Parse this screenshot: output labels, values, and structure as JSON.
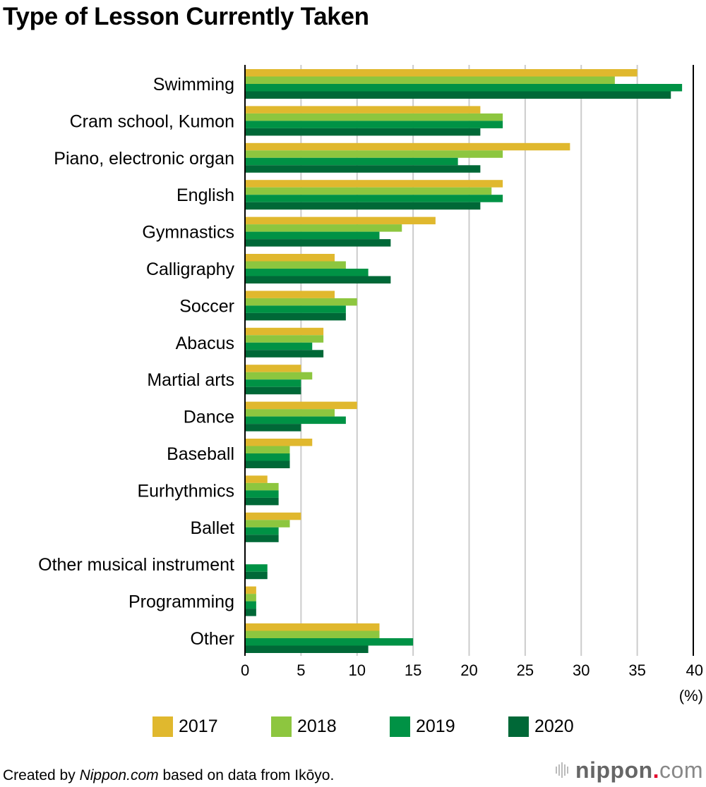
{
  "title": "Type of Lesson Currently Taken",
  "chart_data": {
    "type": "bar",
    "orientation": "horizontal",
    "title": "Type of Lesson Currently Taken",
    "xlabel": "(%)",
    "ylabel": "",
    "xlim": [
      0,
      40
    ],
    "xticks": [
      0,
      5,
      10,
      15,
      20,
      25,
      30,
      35,
      40
    ],
    "tick_labels": [
      "0",
      "5",
      "10",
      "15",
      "20",
      "25",
      "30",
      "35",
      "40"
    ],
    "grid": true,
    "legend_position": "bottom",
    "categories": [
      "Swimming",
      "Cram school, Kumon",
      "Piano, electronic organ",
      "English",
      "Gymnastics",
      "Calligraphy",
      "Soccer",
      "Abacus",
      "Martial arts",
      "Dance",
      "Baseball",
      "Eurhythmics",
      "Ballet",
      "Other musical instrument",
      "Programming",
      "Other"
    ],
    "series": [
      {
        "name": "2017",
        "color": "#e0b82e",
        "values": [
          35,
          21,
          29,
          23,
          17,
          8,
          8,
          7,
          5,
          10,
          6,
          2,
          5,
          null,
          1,
          12
        ]
      },
      {
        "name": "2018",
        "color": "#8dc63f",
        "values": [
          33,
          23,
          23,
          22,
          14,
          9,
          10,
          7,
          6,
          8,
          4,
          3,
          4,
          null,
          1,
          12
        ]
      },
      {
        "name": "2019",
        "color": "#009245",
        "values": [
          39,
          23,
          19,
          23,
          12,
          11,
          9,
          6,
          5,
          9,
          4,
          3,
          3,
          2,
          1,
          15
        ]
      },
      {
        "name": "2020",
        "color": "#006837",
        "values": [
          38,
          21,
          21,
          21,
          13,
          13,
          9,
          7,
          5,
          5,
          4,
          3,
          3,
          2,
          1,
          11
        ]
      }
    ]
  },
  "legend": {
    "items": [
      {
        "label": "2017",
        "color": "#e0b82e"
      },
      {
        "label": "2018",
        "color": "#8dc63f"
      },
      {
        "label": "2019",
        "color": "#009245"
      },
      {
        "label": "2020",
        "color": "#006837"
      }
    ]
  },
  "footer": {
    "prefix": "Created by ",
    "source_name": "Nippon.com",
    "suffix": " based on data from Ikōyo."
  },
  "logo": {
    "name": "nippon",
    "dot": ".",
    "tld": "com"
  }
}
